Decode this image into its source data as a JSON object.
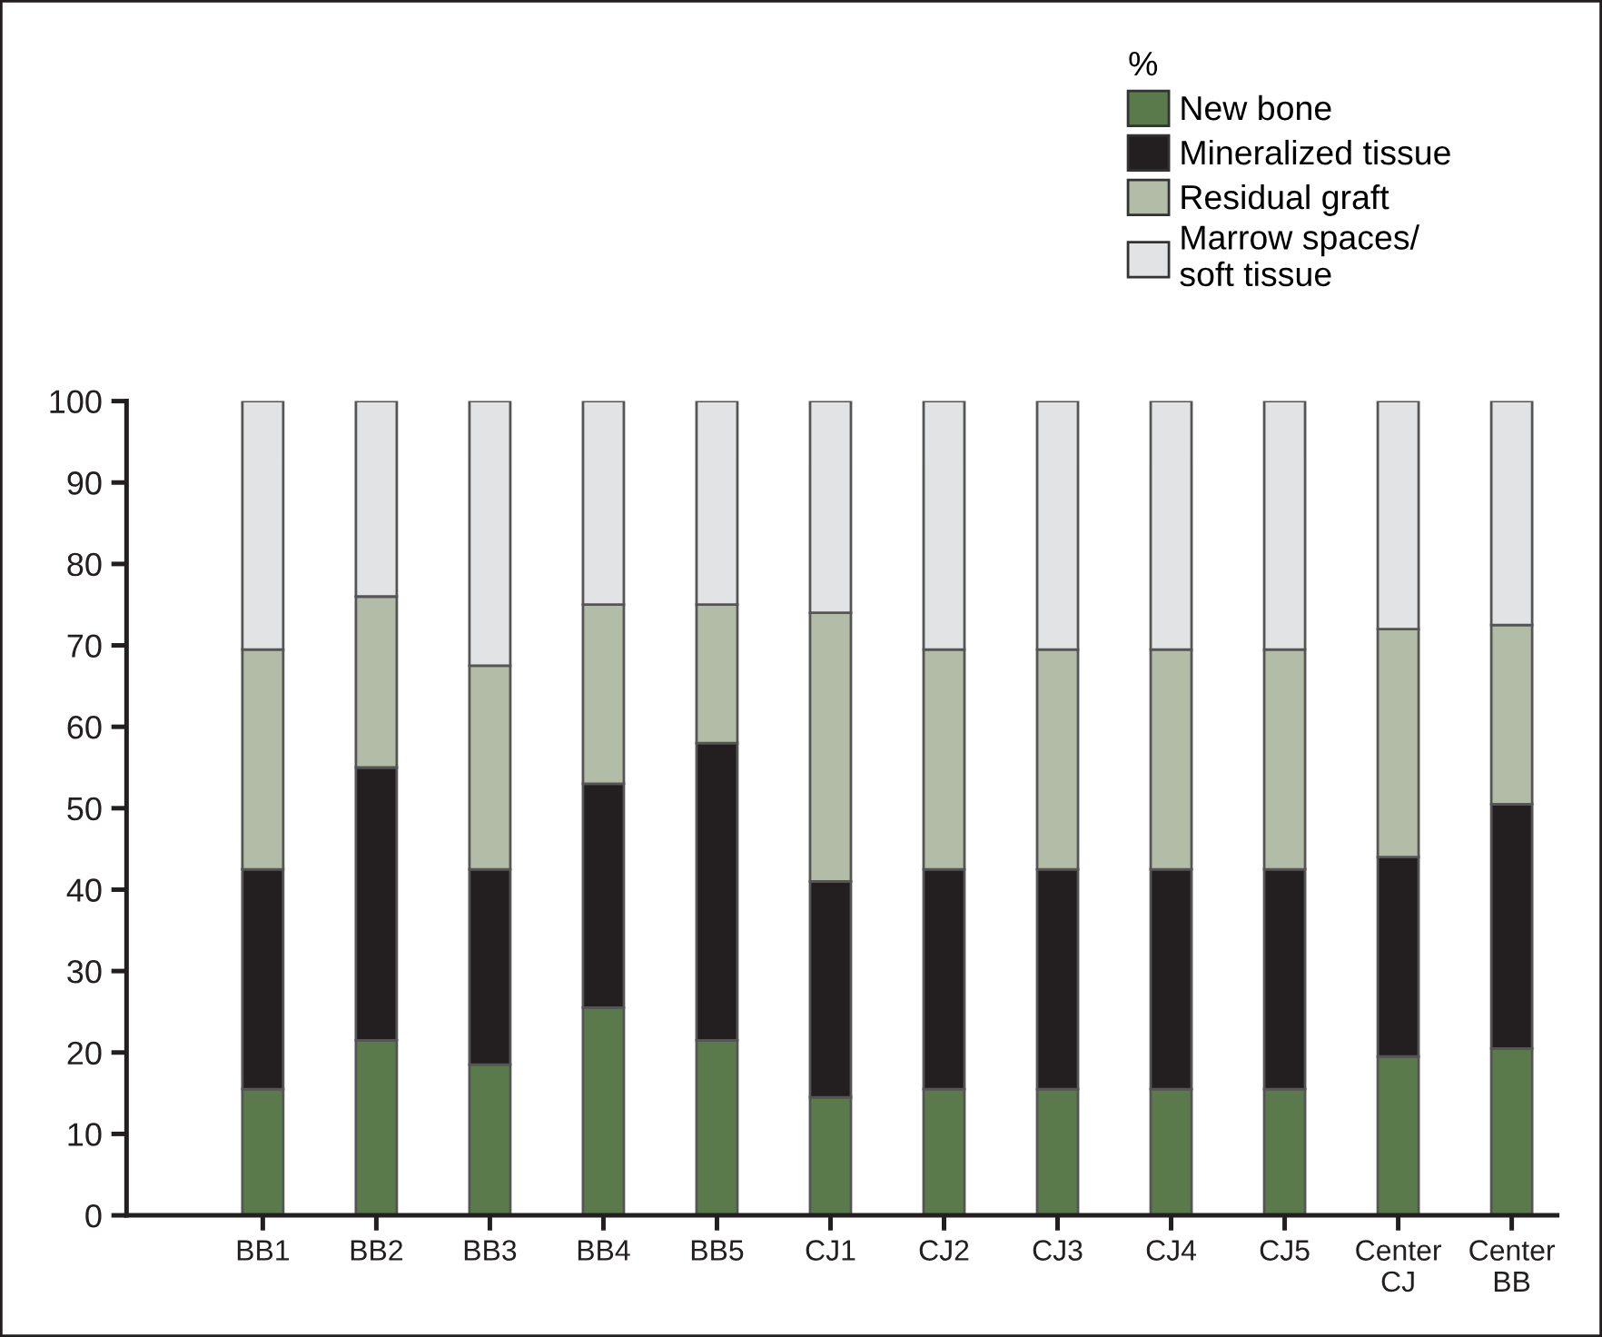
{
  "chart_data": {
    "type": "bar",
    "stacked": true,
    "legend_title": "%",
    "legend": "top right",
    "categories": [
      "BB1",
      "BB2",
      "BB3",
      "BB4",
      "BB5",
      "CJ1",
      "CJ2",
      "CJ3",
      "CJ4",
      "CJ5",
      "Center\nCJ",
      "Center\nBB"
    ],
    "series": [
      {
        "name": "New bone",
        "color": "#5b7a4c",
        "values": [
          15.5,
          21.5,
          18.5,
          25.5,
          21.5,
          14.5,
          15.5,
          15.5,
          15.5,
          15.5,
          19.5,
          20.5
        ]
      },
      {
        "name": "Mineralized tissue",
        "color": "#231f20",
        "values": [
          27,
          33.5,
          24,
          27.5,
          36.5,
          26.5,
          27,
          27,
          27,
          27,
          24.5,
          30
        ]
      },
      {
        "name": "Residual graft",
        "color": "#b2bca6",
        "values": [
          27,
          21,
          25,
          22,
          17,
          33,
          27,
          27,
          27,
          27,
          28,
          22
        ]
      },
      {
        "name": "Marrow spaces/\nsoft tissue",
        "color": "#e1e3e4",
        "values": [
          30.5,
          24,
          32.5,
          25,
          25,
          26,
          30.5,
          30.5,
          30.5,
          30.5,
          28,
          27.5
        ]
      }
    ],
    "ylim": [
      0,
      100
    ],
    "yticks": [
      0,
      10,
      20,
      30,
      40,
      50,
      60,
      70,
      80,
      90,
      100
    ],
    "grid": false
  }
}
